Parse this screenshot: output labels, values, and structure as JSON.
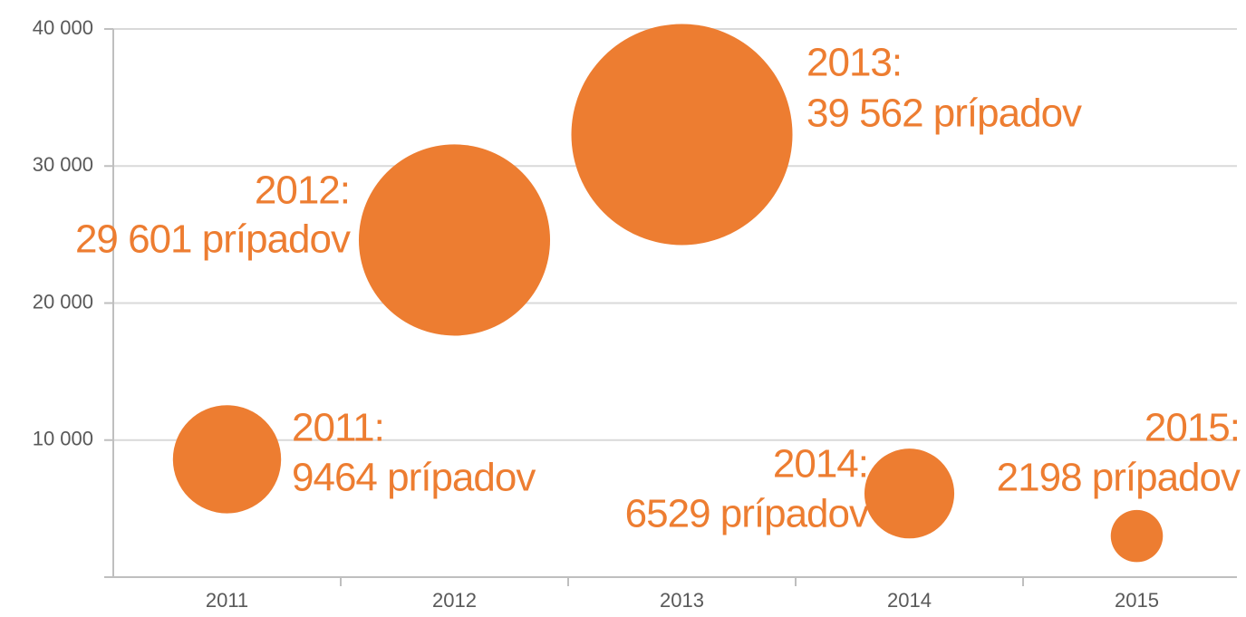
{
  "chart_data": {
    "type": "bubble",
    "categories": [
      "2011",
      "2012",
      "2013",
      "2014",
      "2015"
    ],
    "values": [
      8600,
      24600,
      32300,
      6100,
      3000
    ],
    "sizes": [
      9464,
      29601,
      39562,
      6529,
      2198
    ],
    "value_labels": [
      [
        "2011:",
        "9464 prípadov"
      ],
      [
        "2012:",
        "29 601 prípadov"
      ],
      [
        "2013:",
        "39 562 prípadov"
      ],
      [
        "2014:",
        "6529 prípadov"
      ],
      [
        "2015:",
        "2198 prípadov"
      ]
    ],
    "color": "#ED7D31",
    "ylim": [
      0,
      40000
    ],
    "yticks": [
      {
        "value": 10000,
        "label": "10 000"
      },
      {
        "value": 20000,
        "label": "20 000"
      },
      {
        "value": 30000,
        "label": "30 000"
      },
      {
        "value": 40000,
        "label": "40 000"
      }
    ],
    "grid": true
  }
}
